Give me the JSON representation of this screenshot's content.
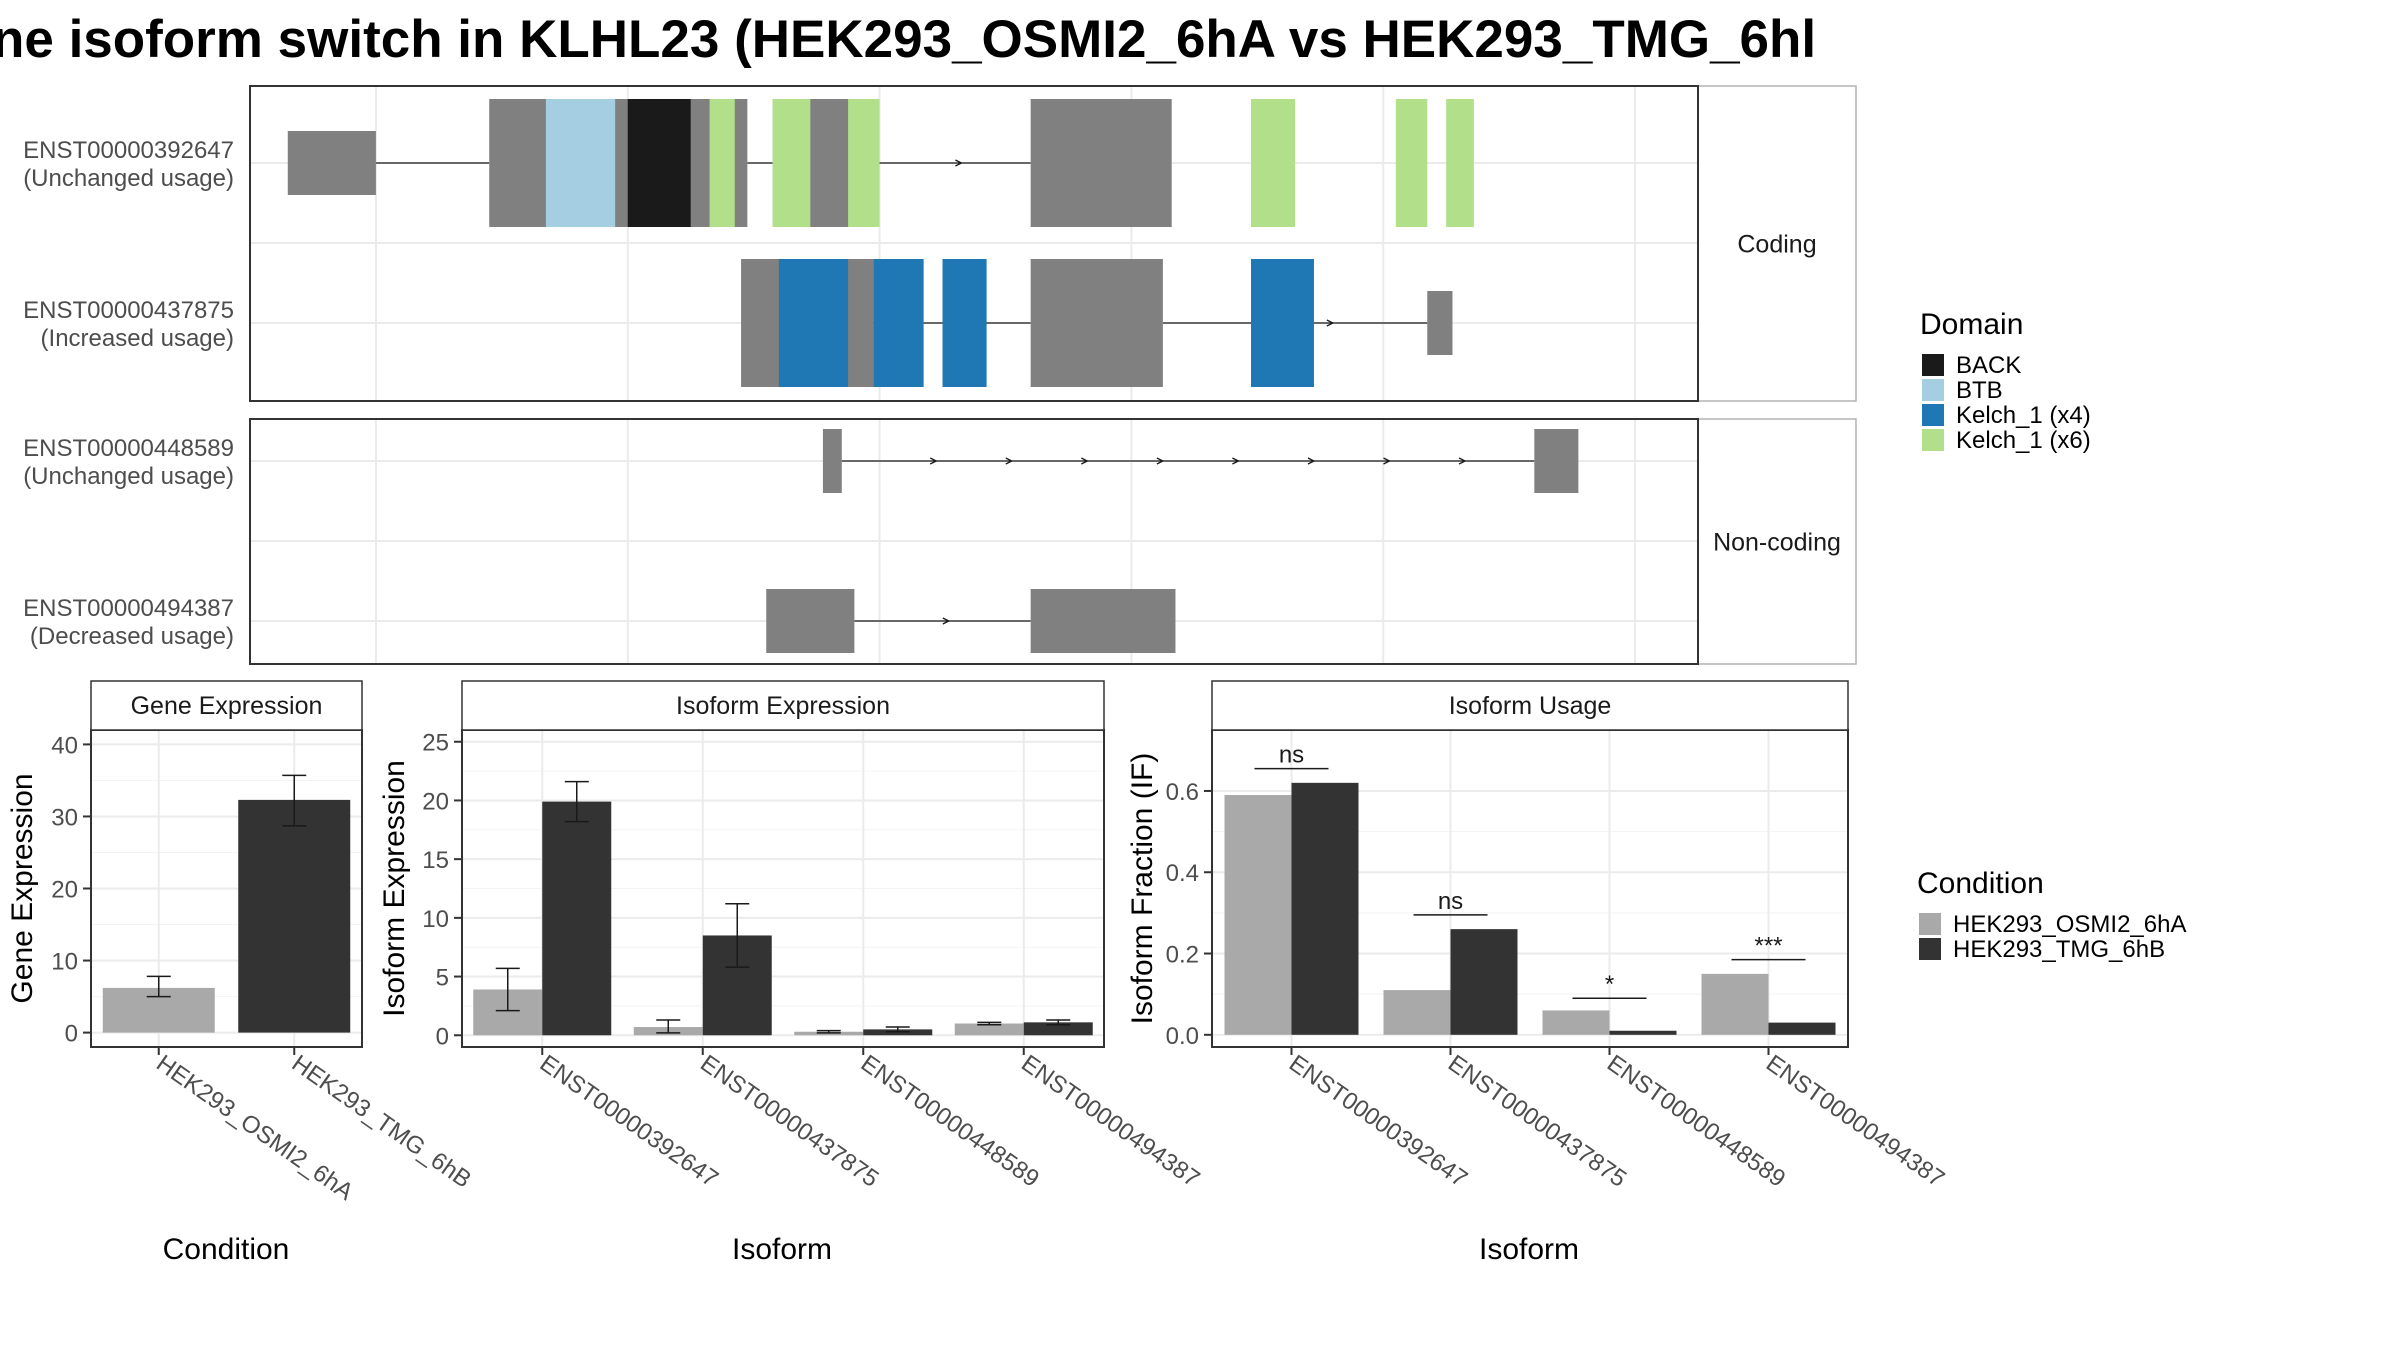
{
  "chart_data": {
    "title": "ne isoform switch in KLHL23 (HEK293_OSMI2_6hA vs HEK293_TMG_6hl",
    "structure": {
      "type": "gene-structure",
      "facets": [
        "Coding",
        "Non-coding"
      ],
      "transcripts": [
        {
          "id": "ENST00000392647",
          "usage": "(Unchanged usage)",
          "facet": "Coding",
          "exons": [
            [
              0.3,
              1.0
            ],
            [
              1.9,
              3.95
            ],
            [
              4.35,
              4.9
            ],
            [
              6.2,
              7.32
            ]
          ],
          "utr": [
            [
              0.3,
              1.0
            ],
            [
              1.9,
              2.0
            ],
            [
              6.7,
              7.32
            ]
          ],
          "domains": [
            {
              "domain": "BTB",
              "start": 2.35,
              "end": 2.9
            },
            {
              "domain": "BACK",
              "start": 3.0,
              "end": 3.5
            },
            {
              "domain": "Kelch_1 (x6)",
              "start": 3.65,
              "end": 3.85
            },
            {
              "domain": "Kelch_1 (x6)",
              "start": 4.15,
              "end": 4.45
            },
            {
              "domain": "Kelch_1 (x6)",
              "start": 4.75,
              "end": 5.0
            },
            {
              "domain": "Kelch_1 (x6)",
              "start": 7.95,
              "end": 8.3
            },
            {
              "domain": "Kelch_1 (x6)",
              "start": 9.1,
              "end": 9.35
            },
            {
              "domain": "Kelch_1 (x6)",
              "start": 9.5,
              "end": 9.72
            }
          ]
        },
        {
          "id": "ENST00000437875",
          "usage": "(Increased usage)",
          "facet": "Coding",
          "exons": [
            [
              3.9,
              4.95
            ],
            [
              6.2,
              7.25
            ],
            [
              9.35,
              9.55
            ]
          ],
          "utr": [
            [
              3.9,
              4.2
            ],
            [
              9.35,
              9.55
            ]
          ],
          "domains": [
            {
              "domain": "Kelch_1 (x4)",
              "start": 4.2,
              "end": 4.75
            },
            {
              "domain": "Kelch_1 (x4)",
              "start": 4.95,
              "end": 5.35
            },
            {
              "domain": "Kelch_1 (x4)",
              "start": 5.5,
              "end": 5.85
            },
            {
              "domain": "Kelch_1 (x4)",
              "start": 7.95,
              "end": 8.45
            }
          ]
        },
        {
          "id": "ENST00000448589",
          "usage": "(Unchanged usage)",
          "facet": "Non-coding",
          "exons": [
            [
              4.55,
              4.7
            ],
            [
              10.2,
              10.55
            ]
          ],
          "utr": [],
          "domains": []
        },
        {
          "id": "ENST00000494387",
          "usage": "(Decreased usage)",
          "facet": "Non-coding",
          "exons": [
            [
              4.1,
              4.8
            ],
            [
              6.2,
              7.35
            ]
          ],
          "utr": [],
          "domains": []
        }
      ],
      "domain_legend": {
        "title": "Domain",
        "entries": [
          {
            "name": "BACK",
            "color": "#1a1a1a"
          },
          {
            "name": "BTB",
            "color": "#a6cee3"
          },
          {
            "name": "Kelch_1 (x4)",
            "color": "#1f78b4"
          },
          {
            "name": "Kelch_1 (x6)",
            "color": "#b2df8a"
          }
        ]
      }
    },
    "panels": [
      {
        "type": "bar",
        "strip": "Gene Expression",
        "xlabel": "Condition",
        "ylabel": "Gene Expression",
        "categories": [
          "HEK293_OSMI2_6hA",
          "HEK293_TMG_6hB"
        ],
        "ylim": [
          -2,
          42
        ],
        "yticks": [
          0,
          10,
          20,
          30,
          40
        ],
        "bars": [
          {
            "category": "HEK293_OSMI2_6hA",
            "condition": "HEK293_OSMI2_6hA",
            "value": 6.2,
            "error": [
              5.0,
              7.8
            ]
          },
          {
            "category": "HEK293_TMG_6hB",
            "condition": "HEK293_TMG_6hB",
            "value": 32.3,
            "error": [
              28.7,
              35.7
            ]
          }
        ]
      },
      {
        "type": "bar",
        "strip": "Isoform Expression",
        "xlabel": "Isoform",
        "ylabel": "Isoform Expression",
        "categories": [
          "ENST00000392647",
          "ENST00000437875",
          "ENST00000448589",
          "ENST00000494387"
        ],
        "ylim": [
          -1,
          26
        ],
        "yticks": [
          0,
          5,
          10,
          15,
          20,
          25
        ],
        "series": [
          {
            "name": "HEK293_OSMI2_6hA",
            "values": [
              3.9,
              0.7,
              0.3,
              1.0
            ],
            "errors": [
              [
                2.1,
                5.7
              ],
              [
                0.2,
                1.3
              ],
              [
                0.2,
                0.4
              ],
              [
                0.9,
                1.1
              ]
            ]
          },
          {
            "name": "HEK293_TMG_6hB",
            "values": [
              19.9,
              8.5,
              0.5,
              1.1
            ],
            "errors": [
              [
                18.2,
                21.6
              ],
              [
                5.8,
                11.2
              ],
              [
                0.3,
                0.7
              ],
              [
                0.9,
                1.3
              ]
            ]
          }
        ]
      },
      {
        "type": "bar",
        "strip": "Isoform Usage",
        "xlabel": "Isoform",
        "ylabel": "Isoform Fraction (IF)",
        "categories": [
          "ENST00000392647",
          "ENST00000437875",
          "ENST00000448589",
          "ENST00000494387"
        ],
        "ylim": [
          -0.03,
          0.75
        ],
        "yticks": [
          0.0,
          0.2,
          0.4,
          0.6
        ],
        "ytick_labels": [
          "0.0",
          "0.2",
          "0.4",
          "0.6"
        ],
        "series": [
          {
            "name": "HEK293_OSMI2_6hA",
            "values": [
              0.59,
              0.11,
              0.06,
              0.15
            ]
          },
          {
            "name": "HEK293_TMG_6hB",
            "values": [
              0.62,
              0.26,
              0.01,
              0.03
            ]
          }
        ],
        "significance": [
          {
            "category": "ENST00000392647",
            "label": "ns",
            "y": 0.655
          },
          {
            "category": "ENST00000437875",
            "label": "ns",
            "y": 0.295
          },
          {
            "category": "ENST00000448589",
            "label": "*",
            "y": 0.09
          },
          {
            "category": "ENST00000494387",
            "label": "***",
            "y": 0.185
          }
        ]
      }
    ],
    "condition_legend": {
      "title": "Condition",
      "entries": [
        {
          "name": "HEK293_OSMI2_6hA",
          "color": "#a9a9a9"
        },
        {
          "name": "HEK293_TMG_6hB",
          "color": "#333333"
        }
      ]
    },
    "colors": {
      "exon": "#808080",
      "panel_border": "#333333",
      "strip_border": "#b3b3b3",
      "grid": "#ebebeb"
    }
  }
}
